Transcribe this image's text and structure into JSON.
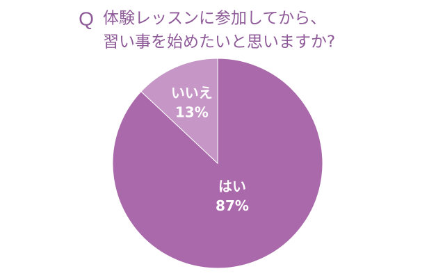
{
  "chart_data": {
    "type": "pie",
    "question_mark": "Q",
    "title": [
      "体験レッスンに参加してから、",
      "習い事を始めたいと思いますか?"
    ],
    "categories": [
      "はい",
      "いいえ"
    ],
    "values": [
      87,
      13
    ],
    "value_labels": [
      "87%",
      "13%"
    ],
    "colors": [
      "#aa69aa",
      "#c697c6"
    ]
  }
}
